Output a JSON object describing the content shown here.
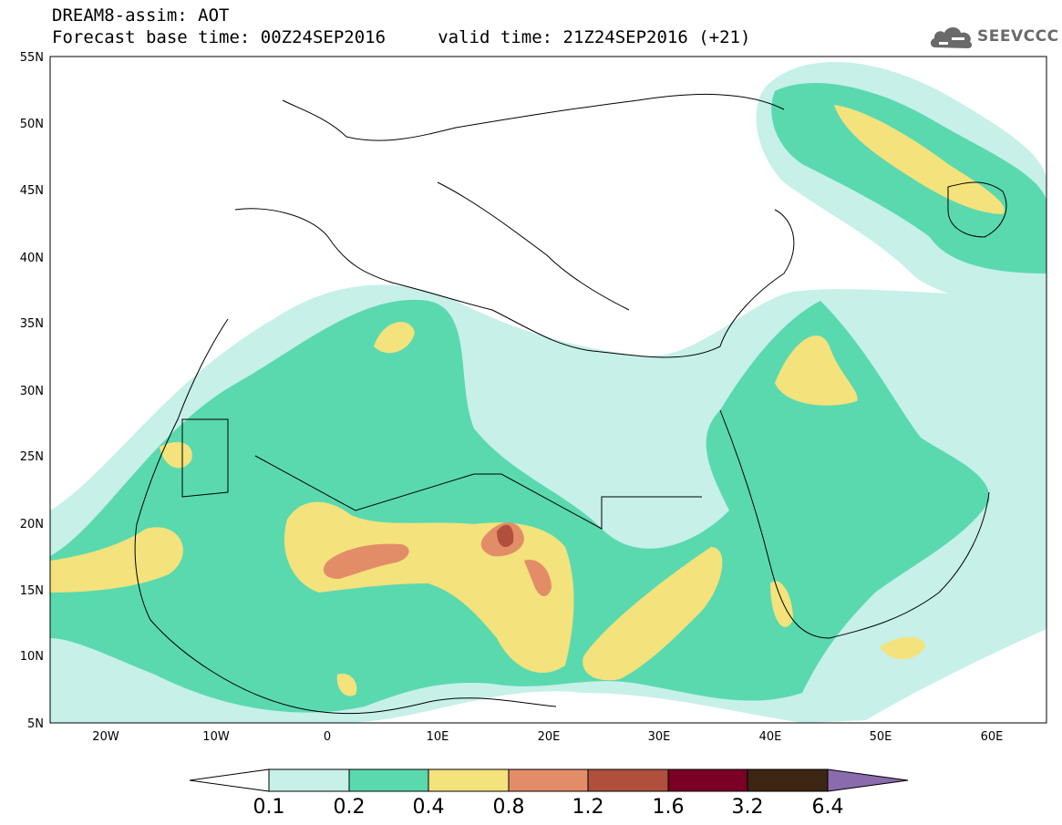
{
  "header": {
    "line1": "DREAM8-assim: AOT",
    "line2": "Forecast base time: 00Z24SEP2016     valid time: 21Z24SEP2016 (+21)"
  },
  "logo": {
    "text": "SEEVCCC",
    "icon": "cloud-icon",
    "color": "#6a6a6a"
  },
  "map": {
    "lon_range": [
      -25,
      65
    ],
    "lat_range": [
      5,
      55
    ],
    "y_ticks": [
      "55N",
      "50N",
      "45N",
      "40N",
      "35N",
      "30N",
      "25N",
      "20N",
      "15N",
      "10N",
      "5N"
    ],
    "x_ticks": [
      "20W",
      "10W",
      "0",
      "10E",
      "20E",
      "30E",
      "40E",
      "50E",
      "60E"
    ]
  },
  "colorbar": {
    "labels": [
      "0.1",
      "0.2",
      "0.4",
      "0.8",
      "1.2",
      "1.6",
      "3.2",
      "6.4"
    ],
    "colors": [
      "#ffffff",
      "#c6f0e8",
      "#5ad9ae",
      "#f4e27c",
      "#e38d68",
      "#b04f3c",
      "#7a0026",
      "#3d2514",
      "#8a6bad"
    ]
  }
}
